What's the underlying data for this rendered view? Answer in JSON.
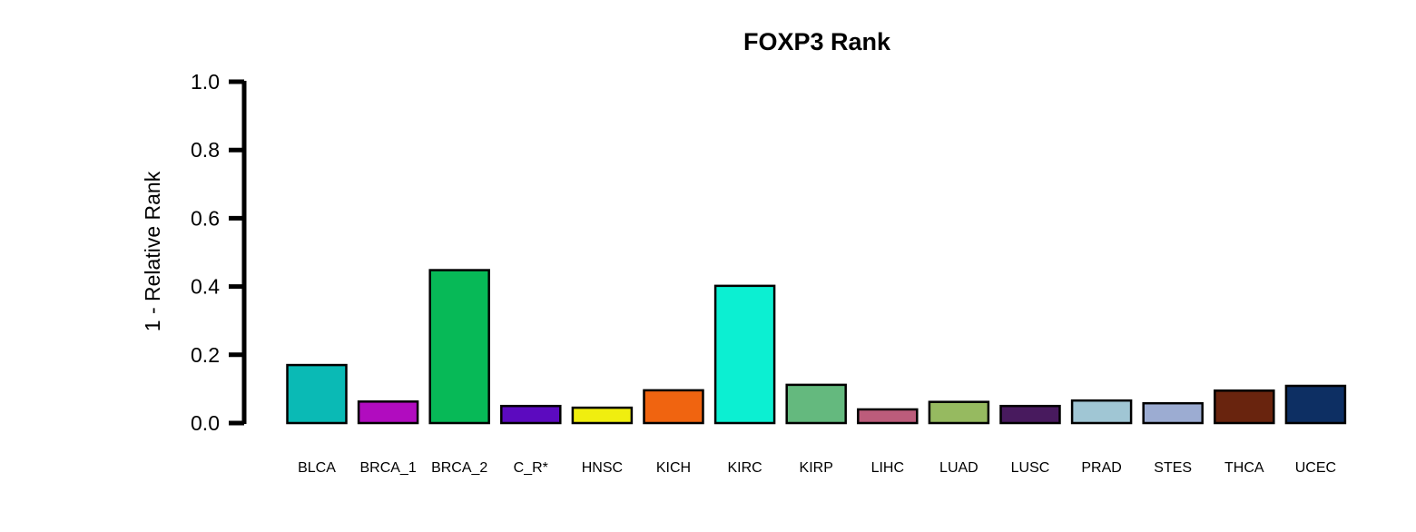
{
  "chart_data": {
    "type": "bar",
    "title": "FOXP3 Rank",
    "xlabel": "",
    "ylabel": "1 - Relative Rank",
    "ylim": [
      0,
      1.0
    ],
    "yticks": [
      "0.0",
      "0.2",
      "0.4",
      "0.6",
      "0.8",
      "1.0"
    ],
    "grid": false,
    "categories": [
      "BLCA",
      "BRCA_1",
      "BRCA_2",
      "C_R*",
      "HNSC",
      "KICH",
      "KIRC",
      "KIRP",
      "LIHC",
      "LUAD",
      "LUSC",
      "PRAD",
      "STES",
      "THCA",
      "UCEC"
    ],
    "values": [
      0.17,
      0.063,
      0.448,
      0.05,
      0.045,
      0.096,
      0.402,
      0.112,
      0.04,
      0.062,
      0.05,
      0.066,
      0.058,
      0.095,
      0.109
    ],
    "colors": [
      "#0abab5",
      "#b10cbf",
      "#07b957",
      "#5c0abf",
      "#f0ee0f",
      "#f06410",
      "#0cefd2",
      "#64b97e",
      "#bc5c7b",
      "#96ba60",
      "#481a5e",
      "#a0c6d4",
      "#9cacd2",
      "#69240e",
      "#0d2f63"
    ]
  }
}
